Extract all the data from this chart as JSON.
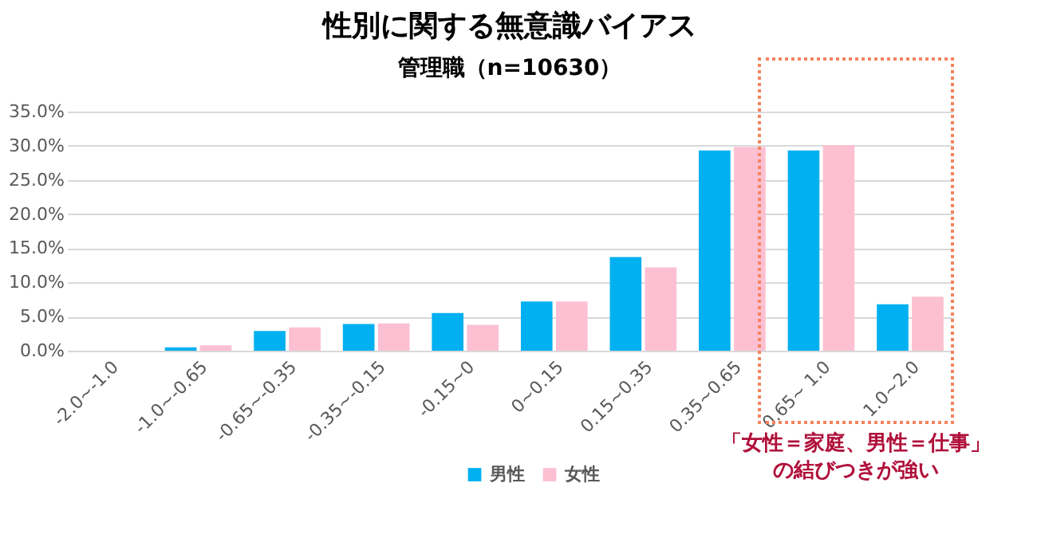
{
  "chart_data": {
    "type": "bar",
    "title": "性別に関する無意識バイアス",
    "subtitle": "管理職（n=10630）",
    "categories": [
      "-2.0~-1.0",
      "-1.0~-0.65",
      "-0.65~-0.35",
      "-0.35~-0.15",
      "-0.15~0",
      "0~0.15",
      "0.15~0.35",
      "0.35~0.65",
      "0.65~ 1.0",
      "1.0~2.0"
    ],
    "series": [
      {
        "name": "男性",
        "color": "#00b0f0",
        "values": [
          0,
          0.5,
          2.9,
          3.9,
          5.5,
          7.2,
          13.7,
          29.3,
          29.3,
          6.8
        ]
      },
      {
        "name": "女性",
        "color": "#fcc0d2",
        "values": [
          0,
          0.8,
          3.4,
          4.0,
          3.8,
          7.2,
          12.2,
          29.8,
          30.1,
          7.9
        ]
      }
    ],
    "ylim": [
      0,
      35
    ],
    "yticks": [
      {
        "value": 0,
        "label": "0.0%"
      },
      {
        "value": 5,
        "label": "5.0%"
      },
      {
        "value": 10,
        "label": "10.0%"
      },
      {
        "value": 15,
        "label": "15.0%"
      },
      {
        "value": 20,
        "label": "20.0%"
      },
      {
        "value": 25,
        "label": "25.0%"
      },
      {
        "value": 30,
        "label": "30.0%"
      },
      {
        "value": 35,
        "label": "35.0%"
      }
    ],
    "grid": "y",
    "legend": "bottom",
    "annotations": [
      "「女性＝家庭、男性＝仕事」",
      "の結びつきが強い"
    ]
  }
}
